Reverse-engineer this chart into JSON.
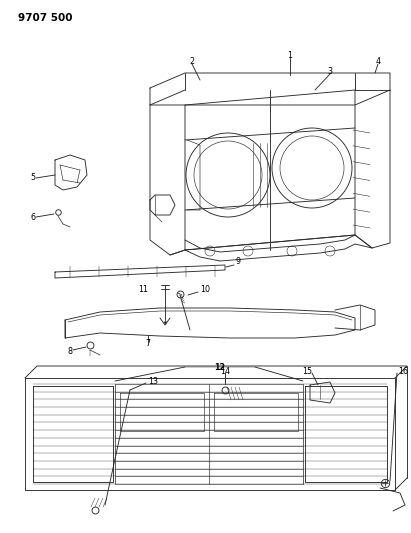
{
  "title": "9707 500",
  "bg": "#ffffff",
  "lc": "#2a2a2a",
  "lw": 0.65,
  "fig_w": 4.11,
  "fig_h": 5.33,
  "dpi": 100,
  "title_fontsize": 7.5,
  "label_fontsize": 5.8
}
